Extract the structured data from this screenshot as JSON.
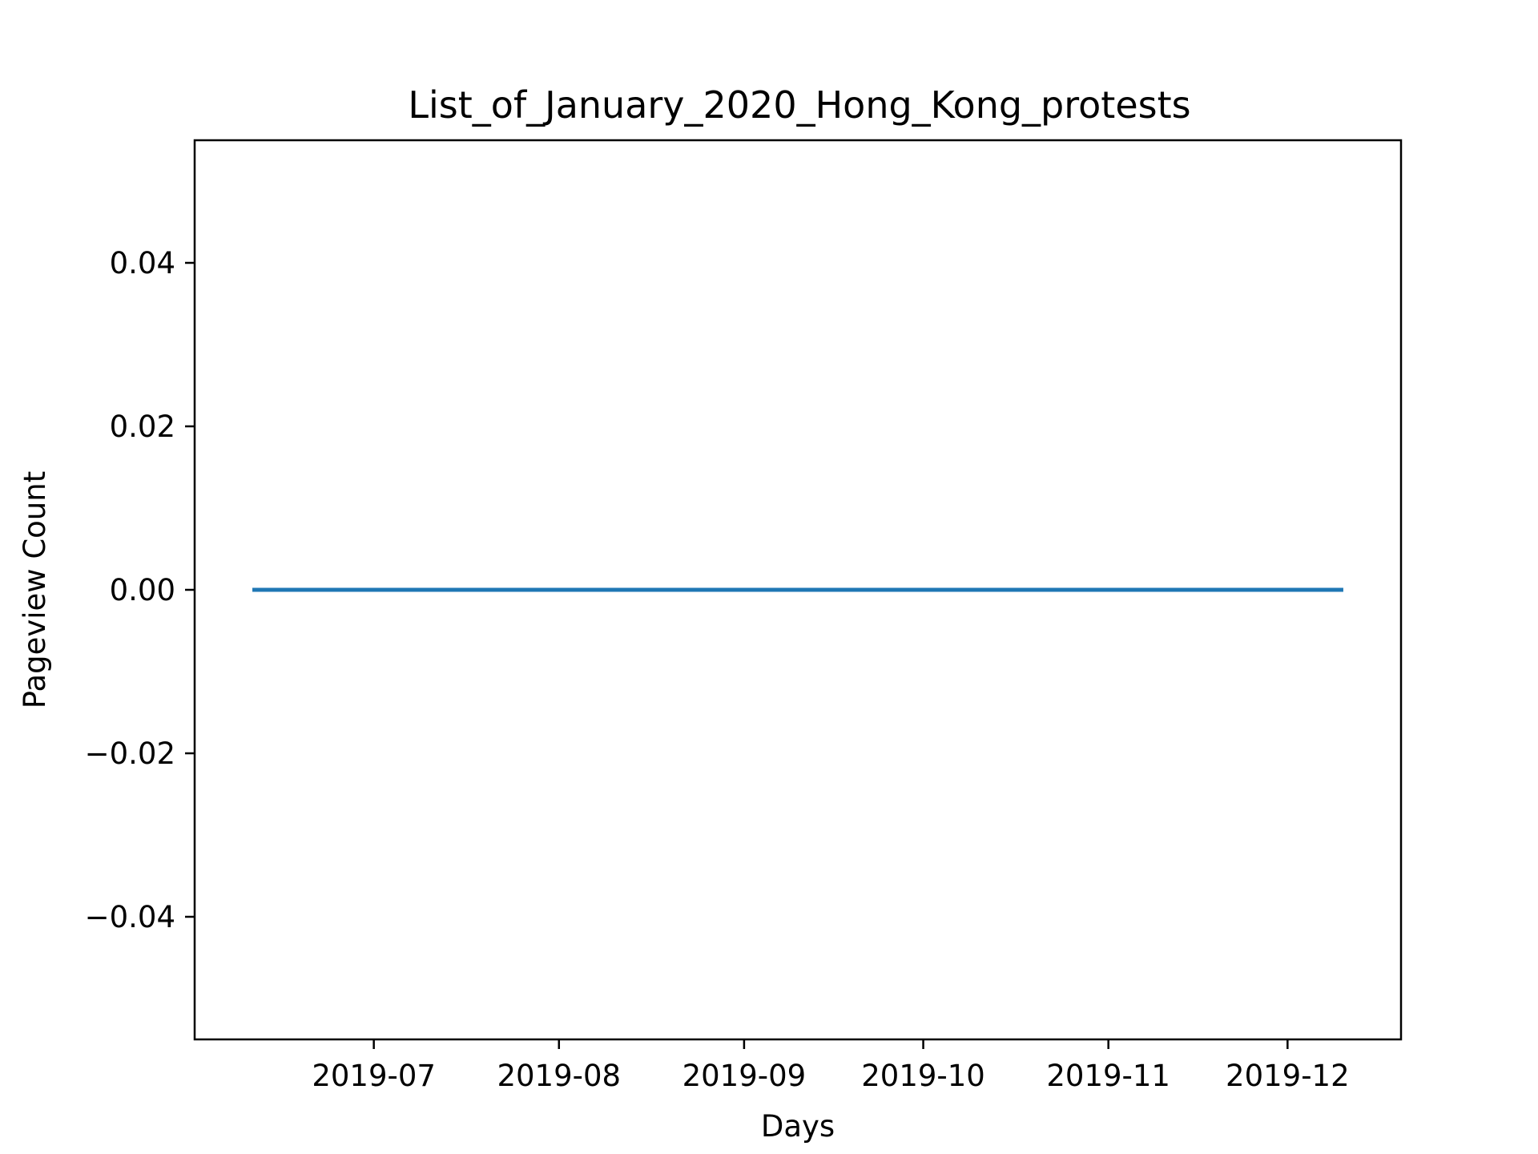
{
  "chart_data": {
    "type": "line",
    "title": "List_of_January_2020_Hong_Kong_protests",
    "xlabel": "Days",
    "ylabel": "Pageview Count",
    "x_start": "2019-06-11",
    "x_end": "2019-12-10",
    "xlim": [
      "2019-06-01",
      "2019-12-20"
    ],
    "ylim": [
      -0.055,
      0.055
    ],
    "x_ticks": [
      "2019-07-01",
      "2019-08-01",
      "2019-09-01",
      "2019-10-01",
      "2019-11-01",
      "2019-12-01"
    ],
    "x_tick_labels": [
      "2019-07",
      "2019-08",
      "2019-09",
      "2019-10",
      "2019-11",
      "2019-12"
    ],
    "y_ticks": [
      -0.04,
      -0.02,
      0.0,
      0.02,
      0.04
    ],
    "y_tick_labels": [
      "−0.04",
      "−0.02",
      "0.00",
      "0.02",
      "0.04"
    ],
    "grid": false,
    "series": [
      {
        "color": "#1f77b4",
        "values": [
          0
        ],
        "constant": true
      }
    ]
  }
}
